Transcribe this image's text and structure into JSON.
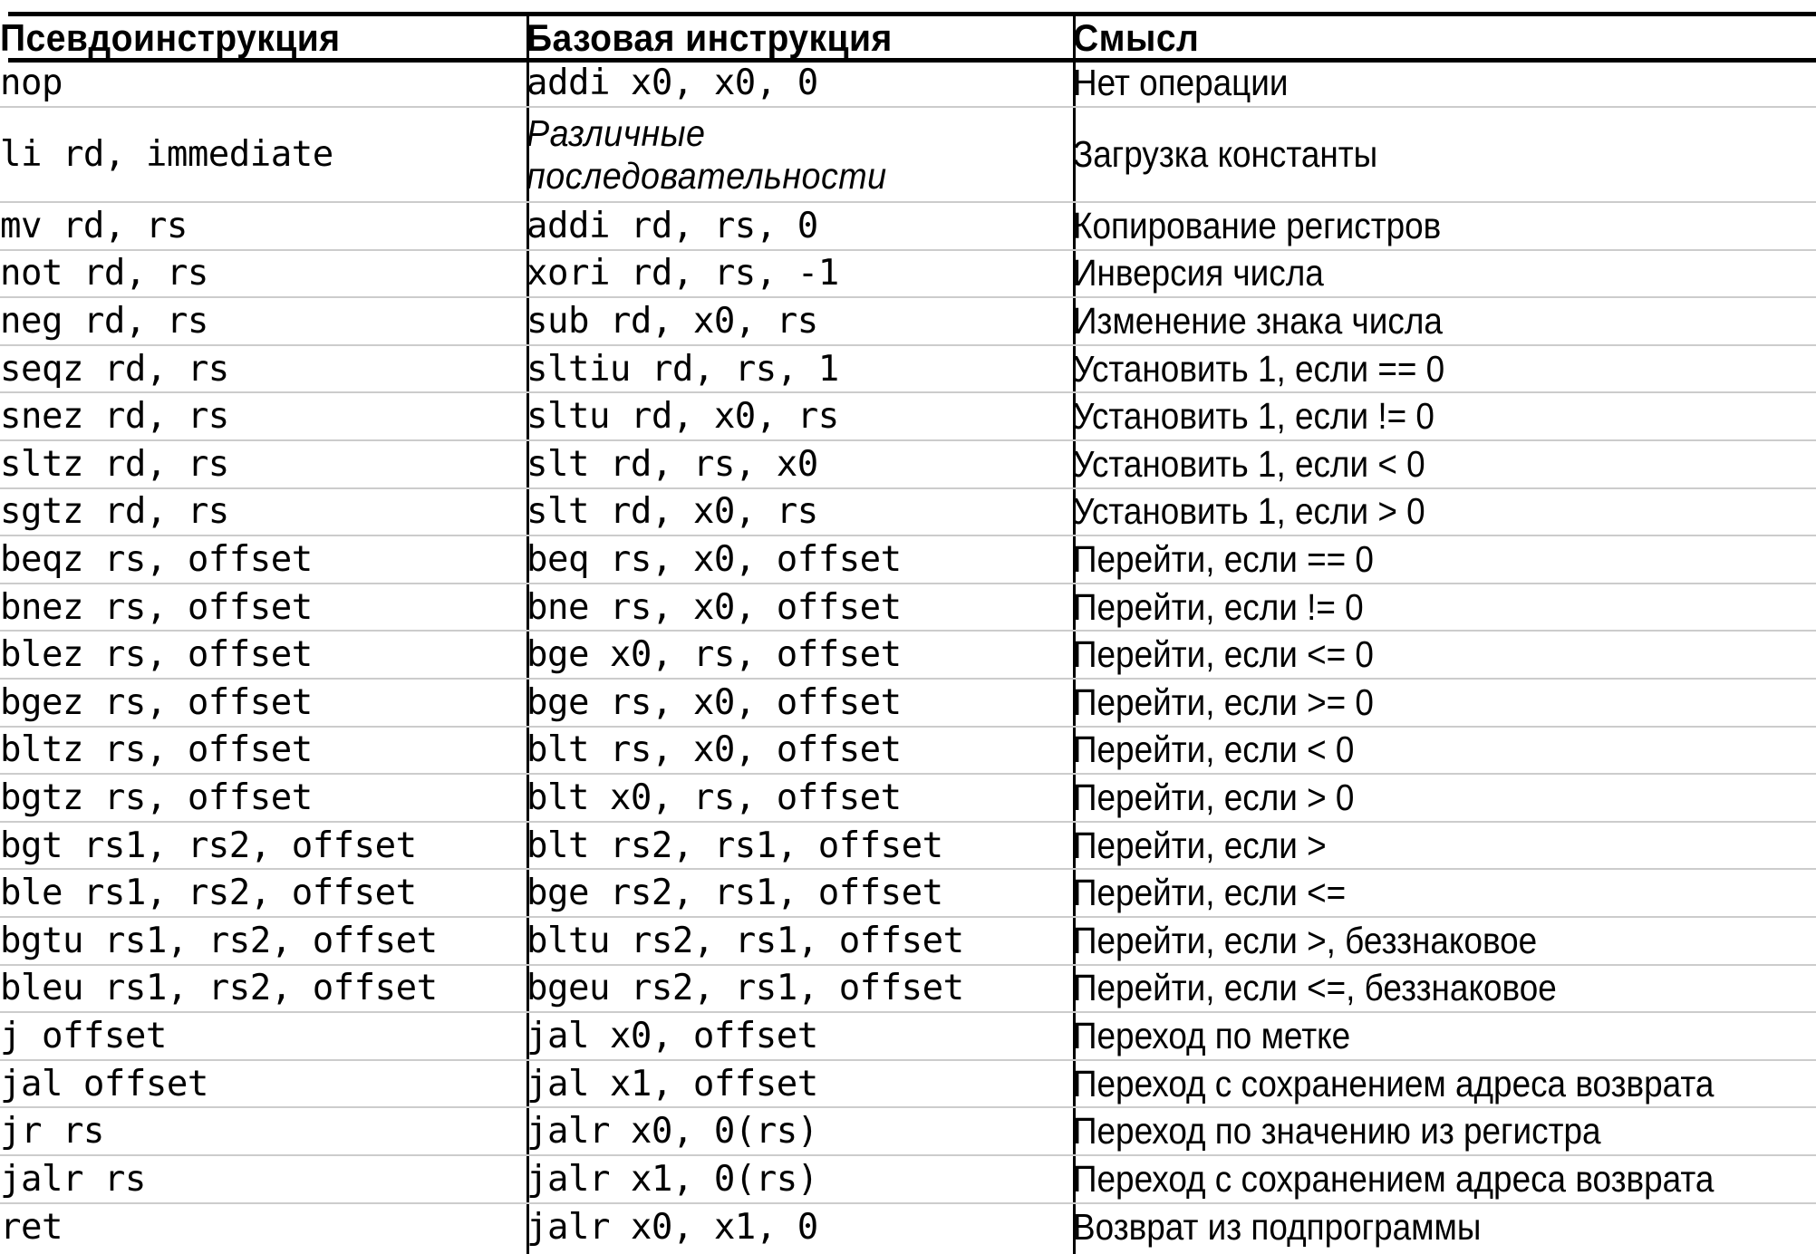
{
  "table": {
    "headers": [
      "Псевдоинструкция",
      "Базовая инструкция",
      "Смысл"
    ],
    "rows": [
      {
        "pseudo": "nop",
        "base": "addi x0, x0, 0",
        "meaning": "Нет операции"
      },
      {
        "pseudo": "li rd, immediate",
        "base": "",
        "base_lines": [
          "Различные",
          "последовательности"
        ],
        "tall": true,
        "meaning": "Загрузка константы"
      },
      {
        "pseudo": "mv rd, rs",
        "base": "addi rd, rs, 0",
        "meaning": "Копирование регистров"
      },
      {
        "pseudo": "not rd, rs",
        "base": "xori rd, rs, -1",
        "meaning": "Инверсия числа"
      },
      {
        "pseudo": "neg rd, rs",
        "base": "sub rd, x0, rs",
        "meaning": "Изменение знака числа"
      },
      {
        "pseudo": "seqz rd, rs",
        "base": "sltiu rd, rs, 1",
        "meaning": "Установить 1, если == 0"
      },
      {
        "pseudo": "snez rd, rs",
        "base": "sltu rd, x0, rs",
        "meaning": "Установить 1, если != 0"
      },
      {
        "pseudo": "sltz rd, rs",
        "base": "slt rd, rs, x0",
        "meaning": "Установить 1, если < 0"
      },
      {
        "pseudo": "sgtz rd, rs",
        "base": "slt rd, x0, rs",
        "meaning": "Установить 1, если > 0"
      },
      {
        "pseudo": "beqz rs, offset",
        "base": "beq rs, x0, offset",
        "meaning": "Перейти, если == 0"
      },
      {
        "pseudo": "bnez rs, offset",
        "base": "bne rs, x0, offset",
        "meaning": "Перейти, если != 0"
      },
      {
        "pseudo": "blez rs, offset",
        "base": "bge x0, rs, offset",
        "meaning": "Перейти, если <= 0"
      },
      {
        "pseudo": "bgez rs, offset",
        "base": "bge rs, x0, offset",
        "meaning": "Перейти, если >= 0"
      },
      {
        "pseudo": "bltz rs, offset",
        "base": "blt rs, x0, offset",
        "meaning": "Перейти, если < 0"
      },
      {
        "pseudo": "bgtz rs, offset",
        "base": "blt x0, rs, offset",
        "meaning": "Перейти, если > 0"
      },
      {
        "pseudo": "bgt rs1, rs2, offset",
        "base": "blt rs2, rs1, offset",
        "meaning": "Перейти, если >"
      },
      {
        "pseudo": "ble rs1, rs2, offset",
        "base": "bge rs2, rs1, offset",
        "meaning": "Перейти, если <="
      },
      {
        "pseudo": "bgtu rs1, rs2, offset",
        "base": "bltu rs2, rs1, offset",
        "meaning": "Перейти, если >, беззнаковое"
      },
      {
        "pseudo": "bleu rs1, rs2, offset",
        "base": "bgeu rs2, rs1, offset",
        "meaning": "Перейти, если <=, беззнаковое"
      },
      {
        "pseudo": "j offset",
        "base": "jal x0, offset",
        "meaning": "Переход по метке"
      },
      {
        "pseudo": "jal offset",
        "base": "jal x1, offset",
        "meaning": "Переход с сохранением адреса возврата"
      },
      {
        "pseudo": "jr rs",
        "base": "jalr x0, 0(rs)",
        "meaning": "Переход по значению из регистра"
      },
      {
        "pseudo": "jalr rs",
        "base": "jalr x1, 0(rs)",
        "meaning": "Переход с сохранением адреса возврата"
      },
      {
        "pseudo": "ret",
        "base": "jalr x0, x1, 0",
        "meaning": "Возврат из подпрограммы"
      }
    ]
  }
}
